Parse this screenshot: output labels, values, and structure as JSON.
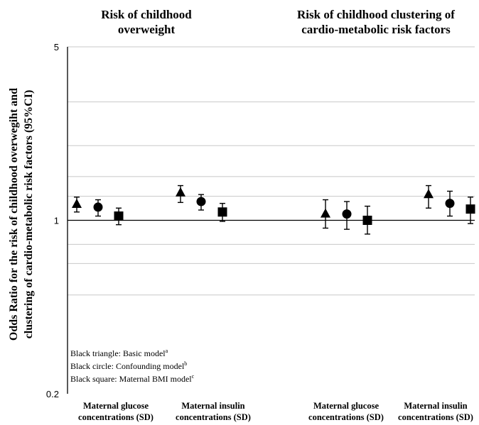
{
  "chart_data": {
    "type": "scatter",
    "titles": [
      [
        "Risk of childhood",
        "overweight"
      ],
      [
        "Risk of childhood  clustering of",
        "cardio-metabolic  risk factors"
      ]
    ],
    "ylabel": [
      "Odds Ratio for the  risk of childhood overwegiht and",
      "clustering  of cardio-metabolic risk factors (95%CI)"
    ],
    "y_scale": "log",
    "ylim": [
      0.2,
      5
    ],
    "y_ticks": [
      {
        "value": 0.2,
        "label": "0.2"
      },
      {
        "value": 1,
        "label": "1"
      },
      {
        "value": 5,
        "label": "5"
      }
    ],
    "gridlines": [
      1.25,
      1.5,
      2.0,
      3.0,
      5.0,
      0.8,
      0.67,
      0.5
    ],
    "categories": [
      [
        "Maternal glucose",
        "concentrations (SD)"
      ],
      [
        "Maternal insulin",
        "concentrations (SD)"
      ],
      [
        "Maternal glucose",
        "concentrations (SD)"
      ],
      [
        "Maternal insulin",
        "concentrations (SD)"
      ]
    ],
    "series": [
      {
        "marker": "triangle",
        "estimate": [
          1.16,
          1.29,
          1.06,
          1.27
        ],
        "lower": [
          1.08,
          1.18,
          0.93,
          1.12
        ],
        "upper": [
          1.24,
          1.38,
          1.21,
          1.38
        ]
      },
      {
        "marker": "circle",
        "estimate": [
          1.13,
          1.19,
          1.06,
          1.17
        ],
        "lower": [
          1.04,
          1.1,
          0.92,
          1.04
        ],
        "upper": [
          1.21,
          1.27,
          1.19,
          1.31
        ]
      },
      {
        "marker": "square",
        "estimate": [
          1.04,
          1.08,
          1.0,
          1.11
        ],
        "lower": [
          0.96,
          0.99,
          0.88,
          0.97
        ],
        "upper": [
          1.12,
          1.17,
          1.14,
          1.24
        ]
      }
    ],
    "legend": [
      {
        "text": "Black triangle: Basic model",
        "sup": "a"
      },
      {
        "text": "Black circle: Confounding model",
        "sup": "b"
      },
      {
        "text": "Black square: Maternal BMI model",
        "sup": "c"
      }
    ]
  }
}
